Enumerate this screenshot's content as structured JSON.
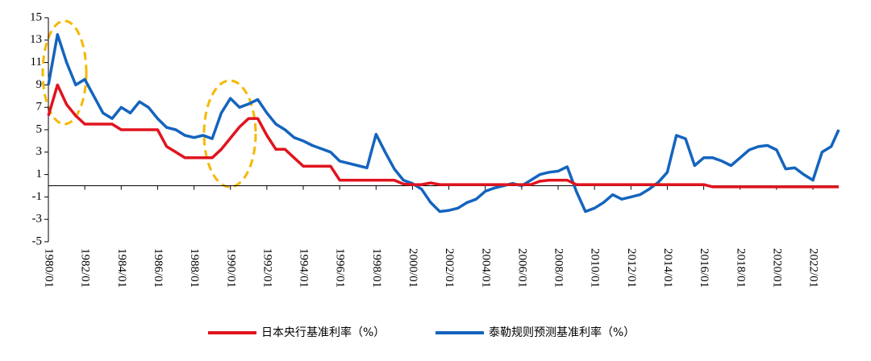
{
  "chart_data": {
    "type": "line",
    "x": [
      "1980/01",
      "1980/07",
      "1981/01",
      "1981/07",
      "1982/01",
      "1982/07",
      "1983/01",
      "1983/07",
      "1984/01",
      "1984/07",
      "1985/01",
      "1985/07",
      "1986/01",
      "1986/07",
      "1987/01",
      "1987/07",
      "1988/01",
      "1988/07",
      "1989/01",
      "1989/07",
      "1990/01",
      "1990/07",
      "1991/01",
      "1991/07",
      "1992/01",
      "1992/07",
      "1993/01",
      "1993/07",
      "1994/01",
      "1994/07",
      "1995/01",
      "1995/07",
      "1996/01",
      "1996/07",
      "1997/01",
      "1997/07",
      "1998/01",
      "1998/07",
      "1999/01",
      "1999/07",
      "2000/01",
      "2000/07",
      "2001/01",
      "2001/07",
      "2002/01",
      "2002/07",
      "2003/01",
      "2003/07",
      "2004/01",
      "2004/07",
      "2005/01",
      "2005/07",
      "2006/01",
      "2006/07",
      "2007/01",
      "2007/07",
      "2008/01",
      "2008/07",
      "2009/01",
      "2009/07",
      "2010/01",
      "2010/07",
      "2011/01",
      "2011/07",
      "2012/01",
      "2012/07",
      "2013/01",
      "2013/07",
      "2014/01",
      "2014/07",
      "2015/01",
      "2015/07",
      "2016/01",
      "2016/07",
      "2017/01",
      "2017/07",
      "2018/01",
      "2018/07",
      "2019/01",
      "2019/07",
      "2020/01",
      "2020/07",
      "2021/01",
      "2021/07",
      "2022/01",
      "2022/07",
      "2023/01",
      "2023/06"
    ],
    "series": [
      {
        "name": "日本央行基准利率（%）",
        "color": "#e0141e",
        "values": [
          6.25,
          9,
          7.25,
          6.25,
          5.5,
          5.5,
          5.5,
          5.5,
          5,
          5,
          5,
          5,
          5,
          3.5,
          3,
          2.5,
          2.5,
          2.5,
          2.5,
          3.25,
          4.25,
          5.25,
          6,
          6,
          4.5,
          3.25,
          3.25,
          2.5,
          1.75,
          1.75,
          1.75,
          1.75,
          0.5,
          0.5,
          0.5,
          0.5,
          0.5,
          0.5,
          0.5,
          0.15,
          0.1,
          0.1,
          0.25,
          0.1,
          0.1,
          0.1,
          0.1,
          0.1,
          0.1,
          0.1,
          0.1,
          0.1,
          0.1,
          0.1,
          0.4,
          0.5,
          0.5,
          0.5,
          0.1,
          0.1,
          0.1,
          0.1,
          0.1,
          0.1,
          0.1,
          0.1,
          0.1,
          0.1,
          0.1,
          0.1,
          0.1,
          0.1,
          0.1,
          -0.1,
          -0.1,
          -0.1,
          -0.1,
          -0.1,
          -0.1,
          -0.1,
          -0.1,
          -0.1,
          -0.1,
          -0.1,
          -0.1,
          -0.1,
          -0.1,
          -0.1
        ]
      },
      {
        "name": "泰勒规则预测基准利率（%）",
        "color": "#1464be",
        "values": [
          9,
          13.5,
          11,
          9,
          9.5,
          8,
          6.5,
          6,
          7,
          6.5,
          7.5,
          7,
          6,
          5.2,
          5,
          4.5,
          4.3,
          4.5,
          4.2,
          6.5,
          7.8,
          7,
          7.3,
          7.7,
          6.5,
          5.5,
          5,
          4.3,
          4,
          3.6,
          3.3,
          3,
          2.2,
          2,
          1.8,
          1.6,
          4.6,
          3,
          1.5,
          0.5,
          0.2,
          -0.3,
          -1.5,
          -2.3,
          -2.2,
          -2,
          -1.5,
          -1.2,
          -0.5,
          -0.2,
          0,
          0.2,
          0,
          0.5,
          1,
          1.2,
          1.3,
          1.7,
          -0.5,
          -2.3,
          -2,
          -1.5,
          -0.8,
          -1.2,
          -1,
          -0.8,
          -0.3,
          0.3,
          1.2,
          4.5,
          4.2,
          1.8,
          2.5,
          2.5,
          2.2,
          1.8,
          2.5,
          3.2,
          3.5,
          3.6,
          3.2,
          1.5,
          1.6,
          1,
          0.5,
          3,
          3.5,
          5
        ]
      }
    ],
    "xlim": [
      "1980/01",
      "2023/06"
    ],
    "xticks": [
      "1980/01",
      "1982/01",
      "1984/01",
      "1986/01",
      "1988/01",
      "1990/01",
      "1992/01",
      "1994/01",
      "1996/01",
      "1998/01",
      "2000/01",
      "2002/01",
      "2004/01",
      "2006/01",
      "2008/01",
      "2010/01",
      "2012/01",
      "2014/01",
      "2016/01",
      "2018/01",
      "2020/01",
      "2022/01"
    ],
    "ylim": [
      -5,
      15
    ],
    "yticks": [
      15,
      13,
      11,
      9,
      7,
      5,
      3,
      1,
      -1,
      -3,
      -5
    ]
  }
}
